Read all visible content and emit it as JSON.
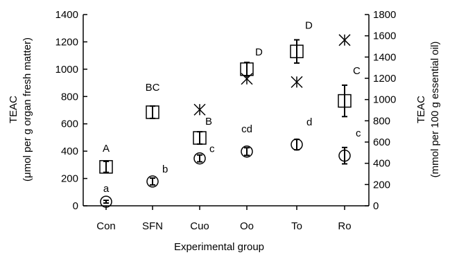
{
  "chart_data": {
    "type": "scatter",
    "title": "",
    "xlabel": "Experimental group",
    "ylabel": "TEAC",
    "ylabel_units": "(μmol per g organ fresh matter)",
    "y2label": "TEAC",
    "y2label_units": "(mmol per 100 g essential oil)",
    "categories": [
      "Con",
      "SFN",
      "Cuo",
      "Oo",
      "To",
      "Ro"
    ],
    "ylim": [
      0,
      1400
    ],
    "yticks": [
      "0",
      "200",
      "400",
      "600",
      "800",
      "1000",
      "1200",
      "1400"
    ],
    "y2lim": [
      0,
      1800
    ],
    "y2ticks": [
      "0",
      "200",
      "400",
      "600",
      "800",
      "1000",
      "1200",
      "1400",
      "1600",
      "1800"
    ],
    "series": [
      {
        "marker": "square",
        "axis": "left",
        "values": [
          285,
          685,
          497,
          1000,
          1130,
          768
        ],
        "errors": [
          40,
          45,
          45,
          50,
          85,
          115
        ],
        "labels": [
          "A",
          "BC",
          "B",
          "D",
          "D",
          "C"
        ]
      },
      {
        "marker": "circle",
        "axis": "left",
        "values": [
          30,
          178,
          347,
          397,
          448,
          367
        ],
        "errors": [
          10,
          25,
          25,
          28,
          38,
          60
        ],
        "labels": [
          "a",
          "b",
          "c",
          "cd",
          "d",
          "c"
        ]
      },
      {
        "marker": "asterisk",
        "axis": "right",
        "values": [
          null,
          null,
          905,
          1195,
          1165,
          1560
        ]
      }
    ]
  }
}
